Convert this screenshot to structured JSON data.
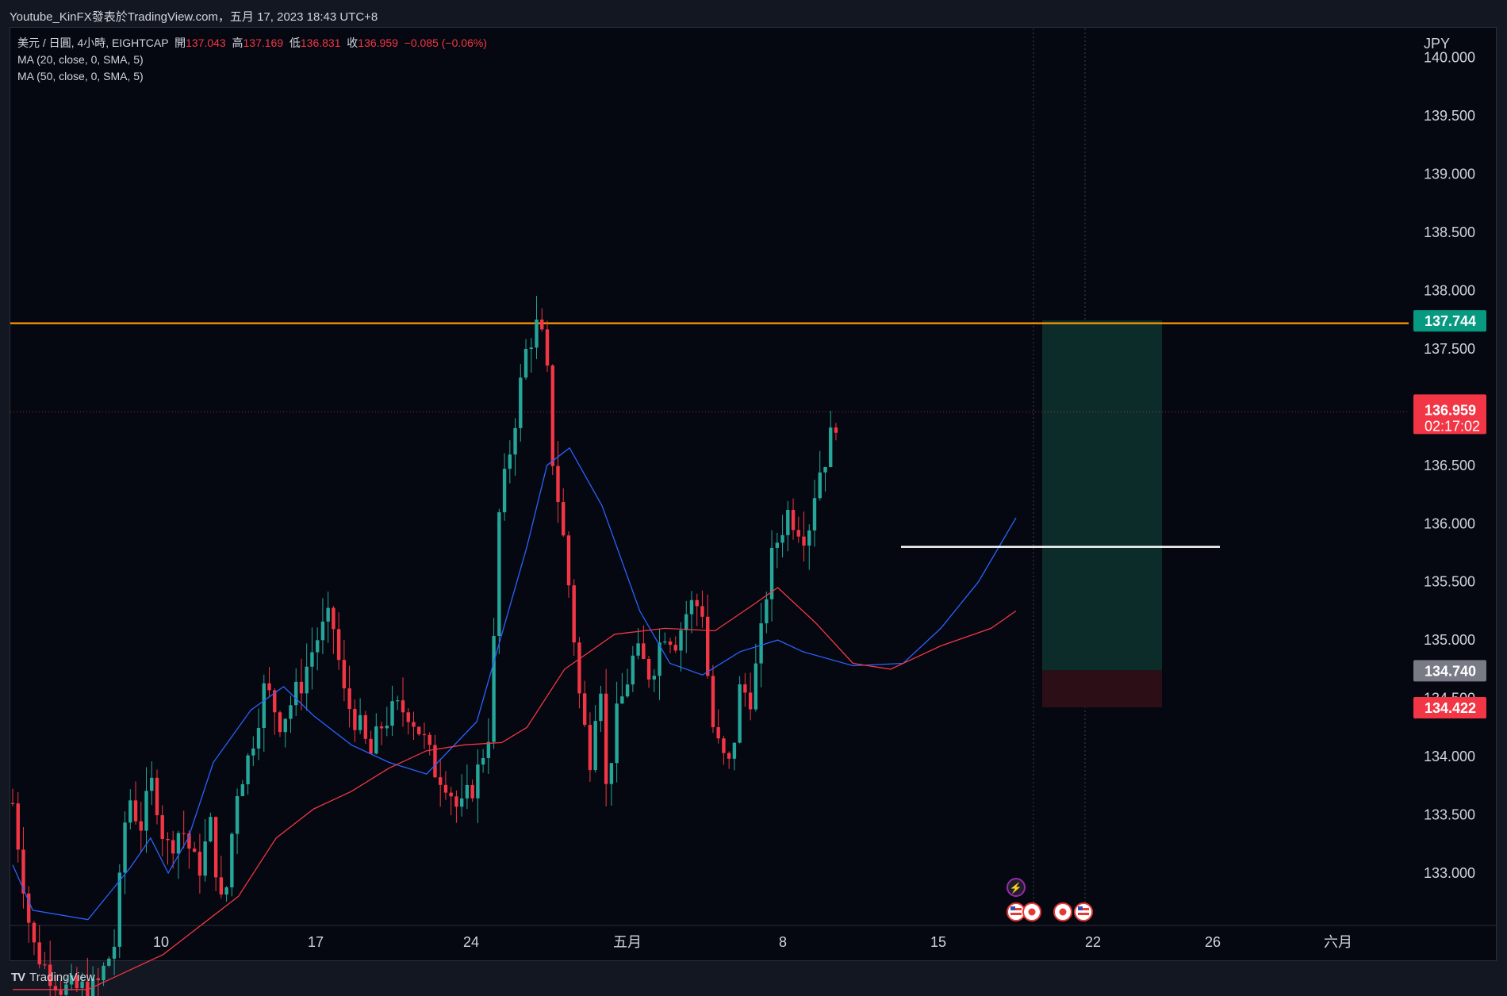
{
  "header": {
    "caption": "Youtube_KinFX發表於TradingView.com，五月 17, 2023 18:43 UTC+8"
  },
  "legend": {
    "symbol": "美元 / 日圓, 4小時, EIGHTCAP",
    "open_label": "開",
    "open": "137.043",
    "high_label": "高",
    "high": "137.169",
    "low_label": "低",
    "low": "136.831",
    "close_label": "收",
    "close": "136.959",
    "change": "−0.085 (−0.06%)",
    "ma20": "MA (20, close, 0, SMA, 5)",
    "ma50": "MA (50, close, 0, SMA, 5)"
  },
  "footer": {
    "brand": "TradingView"
  },
  "colors": {
    "up": "#26a69a",
    "down": "#f23645",
    "ma20": "#2962ff",
    "ma50": "#f23645",
    "resistance": "#ff9800",
    "target_zone": "#0c2c2a",
    "stop_zone": "#2c0f16",
    "entry_line": "#ffffff",
    "background": "#050810"
  },
  "chart_data": {
    "type": "candlestick",
    "currency": "JPY",
    "timeframe": "4h",
    "y_ticks": [
      "140.000",
      "139.500",
      "139.000",
      "138.500",
      "138.000",
      "137.500",
      "137.000",
      "136.500",
      "136.000",
      "135.500",
      "135.000",
      "134.500",
      "134.000",
      "133.500",
      "133.000"
    ],
    "y_range": [
      132.55,
      140.25
    ],
    "x_ticks": [
      "10",
      "17",
      "24",
      "五月",
      "8",
      "15",
      "22",
      "26",
      "六月"
    ],
    "price_labels": {
      "target": "137.744",
      "last_price": "136.959",
      "countdown": "02:17:02",
      "entry": "134.740",
      "stop": "134.422"
    },
    "levels": {
      "resistance": 137.72,
      "entry_line": 135.8,
      "position_target": 137.744,
      "position_entry": 134.74,
      "position_stop": 134.422,
      "last_price": 136.959
    },
    "event_markers": [
      "lightning",
      "US",
      "JP",
      "JP",
      "US"
    ],
    "candles_count": 186,
    "ma20_points": [
      [
        0,
        133.07
      ],
      [
        8,
        132.68
      ],
      [
        30,
        132.6
      ],
      [
        47,
        133.05
      ],
      [
        55,
        133.3
      ],
      [
        62,
        133.0
      ],
      [
        70,
        133.3
      ],
      [
        80,
        133.95
      ],
      [
        95,
        134.4
      ],
      [
        108,
        134.6
      ],
      [
        120,
        134.35
      ],
      [
        135,
        134.1
      ],
      [
        150,
        133.95
      ],
      [
        165,
        133.85
      ],
      [
        185,
        134.3
      ],
      [
        205,
        135.8
      ],
      [
        213,
        136.5
      ],
      [
        222,
        136.65
      ],
      [
        235,
        136.15
      ],
      [
        250,
        135.25
      ],
      [
        262,
        134.8
      ],
      [
        275,
        134.7
      ],
      [
        290,
        134.9
      ],
      [
        305,
        135.0
      ],
      [
        315,
        134.9
      ],
      [
        335,
        134.78
      ],
      [
        355,
        134.8
      ],
      [
        370,
        135.1
      ],
      [
        385,
        135.5
      ],
      [
        400,
        136.05
      ]
    ],
    "ma50_points": [
      [
        0,
        132.0
      ],
      [
        30,
        132.0
      ],
      [
        60,
        132.3
      ],
      [
        90,
        132.8
      ],
      [
        105,
        133.3
      ],
      [
        120,
        133.55
      ],
      [
        135,
        133.7
      ],
      [
        150,
        133.9
      ],
      [
        165,
        134.05
      ],
      [
        180,
        134.1
      ],
      [
        195,
        134.12
      ],
      [
        205,
        134.25
      ],
      [
        220,
        134.75
      ],
      [
        240,
        135.05
      ],
      [
        260,
        135.1
      ],
      [
        280,
        135.08
      ],
      [
        295,
        135.3
      ],
      [
        305,
        135.45
      ],
      [
        320,
        135.15
      ],
      [
        335,
        134.8
      ],
      [
        350,
        134.75
      ],
      [
        370,
        134.95
      ],
      [
        390,
        135.1
      ],
      [
        400,
        135.25
      ]
    ]
  }
}
